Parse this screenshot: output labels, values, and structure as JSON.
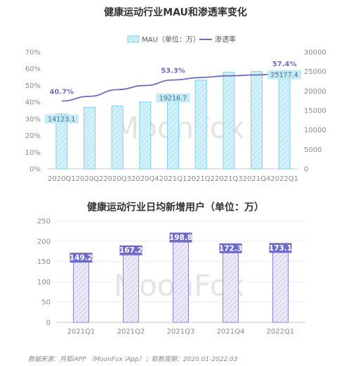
{
  "chart_data": [
    {
      "type": "bar",
      "title": "健康运动行业MAU和渗透率变化",
      "categories": [
        "2020Q1",
        "2020Q2",
        "2020Q3",
        "2020Q4",
        "2021Q1",
        "2021Q2",
        "2021Q3",
        "2021Q4",
        "2022Q1"
      ],
      "series": [
        {
          "name": "MAU（单位：万）",
          "type": "bar",
          "axis": "right",
          "values": [
            14123.1,
            15800,
            16200,
            17200,
            19216.7,
            22800,
            24800,
            25000,
            25177.4
          ],
          "labels": [
            "14123.1",
            "",
            "",
            "",
            "19216.7",
            "",
            "",
            "",
            "25177.4"
          ]
        },
        {
          "name": "渗透率",
          "type": "line",
          "axis": "left",
          "values": [
            40.7,
            43.5,
            47.5,
            50.0,
            53.3,
            54.8,
            55.8,
            56.3,
            57.4
          ],
          "labels": [
            "40.7%",
            "",
            "",
            "",
            "53.3%",
            "",
            "",
            "",
            "57.4%"
          ]
        }
      ],
      "y_left": {
        "min": 0,
        "max": 70,
        "step": 10,
        "ticks": [
          "0%",
          "10%",
          "20%",
          "30%",
          "40%",
          "50%",
          "60%",
          "70%"
        ]
      },
      "y_right": {
        "min": 0,
        "max": 30000,
        "step": 5000,
        "ticks": [
          "0",
          "5000",
          "10000",
          "15000",
          "20000",
          "25000",
          "30000"
        ]
      },
      "legend_position": "top-center",
      "grid": false,
      "colors": {
        "bar_fill": "#c9eef8",
        "bar_stroke": "#7dd2ea",
        "line": "#6b6fc4"
      },
      "watermark": "MoonFox"
    },
    {
      "type": "bar",
      "title": "健康运动行业日均新增用户（单位：万）",
      "categories": [
        "2021Q1",
        "2021Q2",
        "2021Q3",
        "2021Q4",
        "2022Q1"
      ],
      "values": [
        149.2,
        167.2,
        198.8,
        172.3,
        173.1
      ],
      "labels": [
        "149.2",
        "167.2",
        "198.8",
        "172.3",
        "173.1"
      ],
      "ylim": [
        0,
        250
      ],
      "y_ticks": [
        "0",
        "50",
        "100",
        "150",
        "200",
        "250"
      ],
      "grid": true,
      "colors": {
        "bar_fill": "#e4e2f7",
        "bar_stroke": "#8a85d6",
        "label_bg": "#6e6cc8"
      },
      "watermark": "MoonFox"
    }
  ],
  "footer": "数据来源：月狐iAPP （MoonFox iApp）；取数周期：2020.01-2022.03"
}
